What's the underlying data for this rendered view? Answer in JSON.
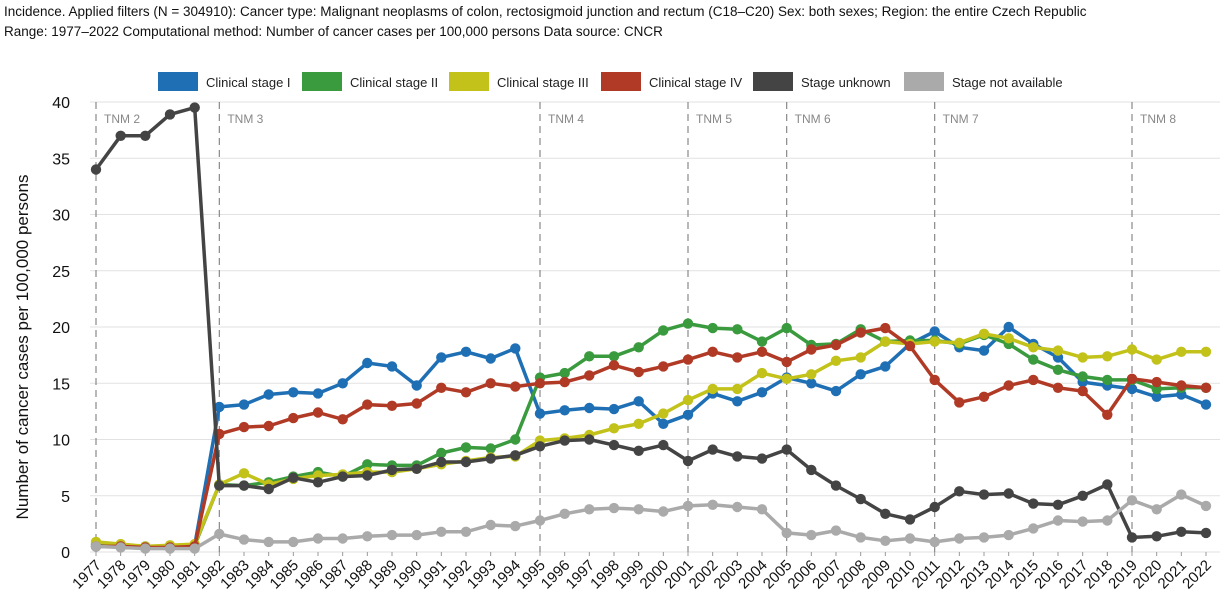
{
  "header": {
    "line1": "Incidence. Applied filters (N = 304910): Cancer type: Malignant neoplasms of colon, rectosigmoid junction and rectum (C18–C20) Sex: both sexes; Region: the entire Czech Republic",
    "line2": "Range: 1977–2022 Computational method: Number of cancer cases per 100,000 persons Data source: CNCR"
  },
  "colors": {
    "stage1": "#1f6fb5",
    "stage2": "#3a9a3e",
    "stage3": "#c2c21a",
    "stage4": "#b03a25",
    "unknown": "#444444",
    "na": "#aaaaaa",
    "grid": "#e2e2e2",
    "tnm_line": "#888888"
  },
  "chart_data": {
    "type": "line",
    "title": "",
    "xlabel": "",
    "ylabel": "Number of cancer cases per 100,000 persons",
    "ylim": [
      0,
      40
    ],
    "yticks": [
      0,
      5,
      10,
      15,
      20,
      25,
      30,
      35,
      40
    ],
    "grid": "horizontal",
    "legend_position": "top",
    "x": [
      1977,
      1978,
      1979,
      1980,
      1981,
      1982,
      1983,
      1984,
      1985,
      1986,
      1987,
      1988,
      1989,
      1990,
      1991,
      1992,
      1993,
      1994,
      1995,
      1996,
      1997,
      1998,
      1999,
      2000,
      2001,
      2002,
      2003,
      2004,
      2005,
      2006,
      2007,
      2008,
      2009,
      2010,
      2011,
      2012,
      2013,
      2014,
      2015,
      2016,
      2017,
      2018,
      2019,
      2020,
      2021,
      2022
    ],
    "tnm_markers": [
      {
        "label": "TNM 2",
        "year": 1977
      },
      {
        "label": "TNM 3",
        "year": 1982
      },
      {
        "label": "TNM 4",
        "year": 1995
      },
      {
        "label": "TNM 5",
        "year": 2001
      },
      {
        "label": "TNM 6",
        "year": 2005
      },
      {
        "label": "TNM 7",
        "year": 2011
      },
      {
        "label": "TNM 8",
        "year": 2019
      }
    ],
    "series": [
      {
        "name": "Clinical stage I",
        "color_key": "stage1",
        "values": [
          0.5,
          0.5,
          0.4,
          0.4,
          0.6,
          12.9,
          13.1,
          14.0,
          14.2,
          14.1,
          15.0,
          16.8,
          16.5,
          14.8,
          17.3,
          17.8,
          17.2,
          18.1,
          12.3,
          12.6,
          12.8,
          12.7,
          13.4,
          11.4,
          12.2,
          14.1,
          13.4,
          14.2,
          15.5,
          15.0,
          14.3,
          15.8,
          16.5,
          18.5,
          19.6,
          18.2,
          17.9,
          20.0,
          18.5,
          17.3,
          15.1,
          14.8,
          14.5,
          13.8,
          14.0,
          13.1
        ]
      },
      {
        "name": "Clinical stage II",
        "color_key": "stage2",
        "values": [
          0.7,
          0.6,
          0.5,
          0.5,
          0.6,
          6.0,
          5.9,
          6.2,
          6.7,
          7.1,
          6.7,
          7.8,
          7.7,
          7.7,
          8.8,
          9.3,
          9.2,
          10.0,
          15.5,
          15.9,
          17.4,
          17.4,
          18.2,
          19.7,
          20.3,
          19.9,
          19.8,
          18.7,
          19.9,
          18.4,
          18.5,
          19.8,
          18.7,
          18.8,
          18.8,
          18.5,
          19.3,
          18.5,
          17.1,
          16.2,
          15.6,
          15.3,
          15.3,
          14.5,
          14.6,
          14.6
        ]
      },
      {
        "name": "Clinical stage III",
        "color_key": "stage3",
        "values": [
          0.9,
          0.7,
          0.5,
          0.6,
          0.7,
          6.0,
          7.0,
          6.0,
          6.5,
          6.8,
          6.9,
          7.1,
          7.1,
          7.4,
          7.8,
          8.1,
          8.4,
          8.5,
          9.9,
          10.1,
          10.4,
          11.0,
          11.4,
          12.3,
          13.5,
          14.5,
          14.5,
          15.9,
          15.4,
          15.8,
          17.0,
          17.3,
          18.7,
          18.5,
          18.7,
          18.6,
          19.4,
          19.0,
          18.2,
          17.9,
          17.3,
          17.4,
          18.0,
          17.1,
          17.8,
          17.8
        ]
      },
      {
        "name": "Clinical stage IV",
        "color_key": "stage4",
        "values": [
          0.5,
          0.5,
          0.4,
          0.4,
          0.5,
          10.5,
          11.1,
          11.2,
          11.9,
          12.4,
          11.8,
          13.1,
          13.0,
          13.2,
          14.6,
          14.2,
          15.0,
          14.7,
          15.0,
          15.1,
          15.7,
          16.6,
          16.0,
          16.5,
          17.1,
          17.8,
          17.3,
          17.8,
          16.9,
          18.0,
          18.4,
          19.5,
          19.9,
          18.3,
          15.3,
          13.3,
          13.8,
          14.8,
          15.3,
          14.6,
          14.3,
          12.2,
          15.4,
          15.1,
          14.8,
          14.6
        ]
      },
      {
        "name": "Stage unknown",
        "color_key": "unknown",
        "values": [
          34.0,
          37.0,
          37.0,
          38.9,
          39.5,
          5.9,
          5.9,
          5.6,
          6.6,
          6.2,
          6.7,
          6.8,
          7.3,
          7.4,
          8.0,
          8.0,
          8.3,
          8.6,
          9.4,
          9.9,
          10.0,
          9.5,
          9.0,
          9.5,
          8.1,
          9.1,
          8.5,
          8.3,
          9.1,
          7.3,
          5.9,
          4.7,
          3.4,
          2.9,
          4.0,
          5.4,
          5.1,
          5.2,
          4.3,
          4.2,
          5.0,
          6.0,
          1.3,
          1.4,
          1.8,
          1.7
        ]
      },
      {
        "name": "Stage not available",
        "color_key": "na",
        "values": [
          0.5,
          0.4,
          0.3,
          0.3,
          0.3,
          1.6,
          1.1,
          0.9,
          0.9,
          1.2,
          1.2,
          1.4,
          1.5,
          1.5,
          1.8,
          1.8,
          2.4,
          2.3,
          2.8,
          3.4,
          3.8,
          3.9,
          3.8,
          3.6,
          4.1,
          4.2,
          4.0,
          3.8,
          1.7,
          1.5,
          1.9,
          1.3,
          1.0,
          1.2,
          0.9,
          1.2,
          1.3,
          1.5,
          2.1,
          2.8,
          2.7,
          2.8,
          4.6,
          3.8,
          5.1,
          4.1
        ]
      }
    ]
  }
}
